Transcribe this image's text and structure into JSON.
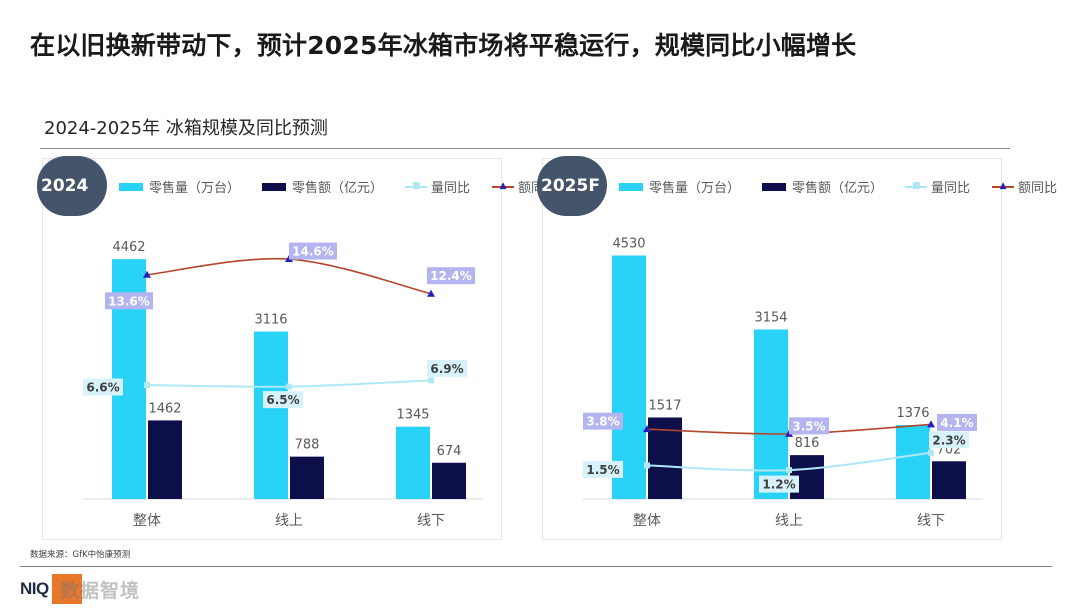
{
  "page": {
    "title": "在以旧换新带动下，预计2025年冰箱市场将平稳运行，规模同比小幅增长",
    "subtitle": "2024-2025年 冰箱规模及同比预测",
    "source": "数据来源：GfK中怡康预测",
    "logo_text": "NIQ",
    "watermark": "数据智境"
  },
  "legend": {
    "volume": "零售量（万台）",
    "value": "零售额（亿元）",
    "volume_yoy": "量同比",
    "value_yoy": "额同比"
  },
  "colors": {
    "volume_bar": "#29d3f8",
    "value_bar": "#0d0f4a",
    "volume_yoy_line": "#aee8f5",
    "value_yoy_line": "#b5462a",
    "value_yoy_marker": "#2222b8",
    "volume_yoy_label_bg": "#d7f2fb",
    "value_yoy_label_bg": "#b4b4f0",
    "badge": "#44546a"
  },
  "chart_data": [
    {
      "type": "bar",
      "panel_label": "2024",
      "categories": [
        "整体",
        "线上",
        "线下"
      ],
      "series": [
        {
          "name": "零售量（万台）",
          "kind": "bar",
          "values": [
            4462,
            3116,
            1345
          ]
        },
        {
          "name": "零售额（亿元）",
          "kind": "bar",
          "values": [
            1462,
            788,
            674
          ]
        },
        {
          "name": "量同比",
          "kind": "line",
          "values": [
            6.6,
            6.5,
            6.9
          ],
          "labels": [
            "6.6%",
            "6.5%",
            "6.9%"
          ]
        },
        {
          "name": "额同比",
          "kind": "line",
          "values": [
            13.6,
            14.6,
            12.4
          ],
          "labels": [
            "13.6%",
            "14.6%",
            "12.4%"
          ]
        }
      ],
      "value_labels": {
        "volume": [
          "4462",
          "3116",
          "1345"
        ],
        "value": [
          "1462",
          "788",
          "674"
        ]
      },
      "ylim": [
        0,
        4800
      ]
    },
    {
      "type": "bar",
      "panel_label": "2025F",
      "categories": [
        "整体",
        "线上",
        "线下"
      ],
      "series": [
        {
          "name": "零售量（万台）",
          "kind": "bar",
          "values": [
            4530,
            3154,
            1376
          ]
        },
        {
          "name": "零售额（亿元）",
          "kind": "bar",
          "values": [
            1517,
            816,
            702
          ]
        },
        {
          "name": "量同比",
          "kind": "line",
          "values": [
            1.5,
            1.2,
            2.3
          ],
          "labels": [
            "1.5%",
            "1.2%",
            "2.3%"
          ]
        },
        {
          "name": "额同比",
          "kind": "line",
          "values": [
            3.8,
            3.5,
            4.1
          ],
          "labels": [
            "3.8%",
            "3.5%",
            "4.1%"
          ]
        }
      ],
      "value_labels": {
        "volume": [
          "4530",
          "3154",
          "1376"
        ],
        "value": [
          "1517",
          "816",
          "702"
        ]
      },
      "ylim": [
        0,
        4800
      ]
    }
  ]
}
